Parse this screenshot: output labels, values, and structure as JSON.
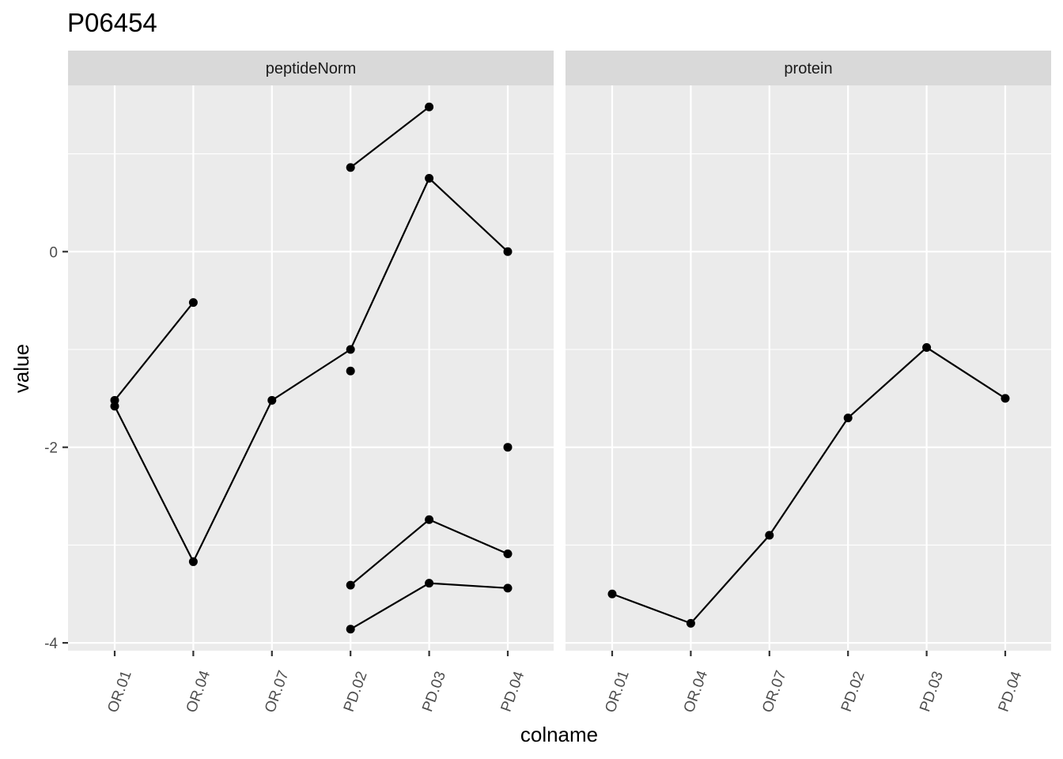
{
  "chart_data": {
    "type": "line",
    "title": "P06454",
    "xlabel": "colname",
    "ylabel": "value",
    "categories": [
      "OR.01",
      "OR.04",
      "OR.07",
      "PD.02",
      "PD.03",
      "PD.04"
    ],
    "y_ticks": [
      0,
      -2,
      -4
    ],
    "y_tick_labels": [
      "0",
      "-2",
      "-4"
    ],
    "ylim": [
      -4.08,
      1.7
    ],
    "grid": true,
    "point_color": "#000000",
    "line_color": "#000000",
    "panel_background": "#ebebeb",
    "strip_background": "#d9d9d9",
    "panels": [
      {
        "name": "peptideNorm",
        "series": [
          {
            "points": [
              {
                "x": "OR.01",
                "y": -1.52
              },
              {
                "x": "OR.04",
                "y": -0.52
              }
            ]
          },
          {
            "points": [
              {
                "x": "OR.01",
                "y": -1.58
              },
              {
                "x": "OR.04",
                "y": -3.17
              },
              {
                "x": "OR.07",
                "y": -1.52
              },
              {
                "x": "PD.02",
                "y": -1.0
              },
              {
                "x": "PD.03",
                "y": 0.75
              },
              {
                "x": "PD.04",
                "y": 0.0
              }
            ]
          },
          {
            "points": [
              {
                "x": "PD.02",
                "y": 0.86
              },
              {
                "x": "PD.03",
                "y": 1.48
              }
            ]
          },
          {
            "points": [
              {
                "x": "PD.02",
                "y": -1.22
              }
            ]
          },
          {
            "points": [
              {
                "x": "PD.04",
                "y": -2.0
              }
            ]
          },
          {
            "points": [
              {
                "x": "PD.02",
                "y": -3.41
              },
              {
                "x": "PD.03",
                "y": -2.74
              },
              {
                "x": "PD.04",
                "y": -3.09
              }
            ]
          },
          {
            "points": [
              {
                "x": "PD.02",
                "y": -3.86
              },
              {
                "x": "PD.03",
                "y": -3.39
              },
              {
                "x": "PD.04",
                "y": -3.44
              }
            ]
          }
        ]
      },
      {
        "name": "protein",
        "series": [
          {
            "points": [
              {
                "x": "OR.01",
                "y": -3.5
              },
              {
                "x": "OR.04",
                "y": -3.8
              },
              {
                "x": "OR.07",
                "y": -2.9
              },
              {
                "x": "PD.02",
                "y": -1.7
              },
              {
                "x": "PD.03",
                "y": -0.98
              },
              {
                "x": "PD.04",
                "y": -1.5
              }
            ]
          }
        ]
      }
    ]
  }
}
